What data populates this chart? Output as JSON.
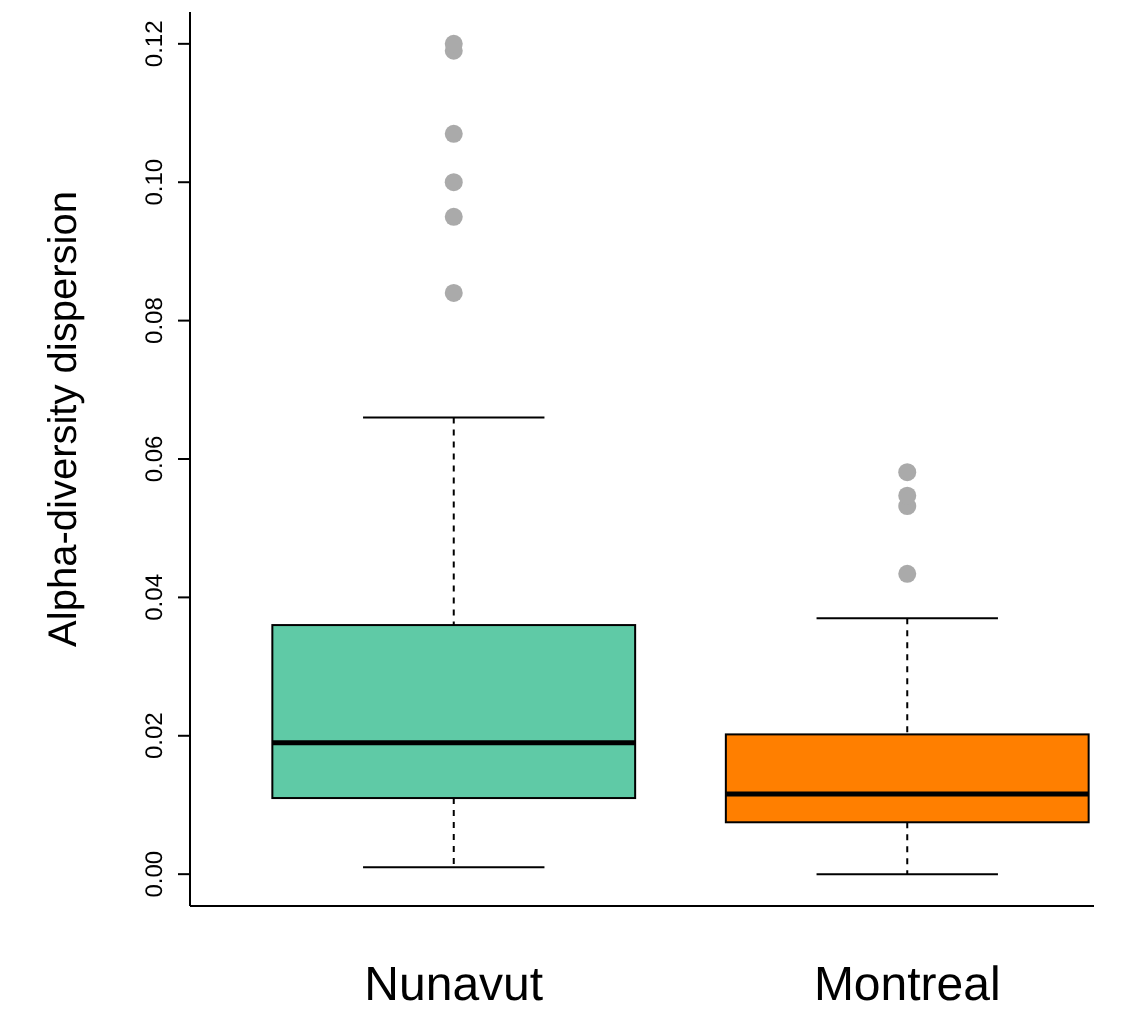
{
  "chart_data": {
    "type": "box",
    "ylabel": "Alpha-diversity dispersion",
    "categories": [
      "Nunavut",
      "Montreal"
    ],
    "colors": [
      "#5fcaa6",
      "#ff7f00"
    ],
    "boxes": [
      {
        "low": 0.001,
        "q1": 0.011,
        "median": 0.019,
        "q3": 0.036,
        "high": 0.066,
        "outliers": [
          0.084,
          0.095,
          0.1,
          0.107,
          0.119,
          0.12
        ]
      },
      {
        "low": 0.0,
        "q1": 0.0075,
        "median": 0.0116,
        "q3": 0.0202,
        "high": 0.037,
        "outliers": [
          0.0434,
          0.0532,
          0.0547,
          0.0581
        ]
      }
    ],
    "ylim": [
      -0.0046,
      0.1246
    ],
    "yticks": [
      {
        "value": 0,
        "label": "0.00"
      },
      {
        "value": 0.02,
        "label": "0.02"
      },
      {
        "value": 0.04,
        "label": "0.04"
      },
      {
        "value": 0.06,
        "label": "0.06"
      },
      {
        "value": 0.08,
        "label": "0.08"
      },
      {
        "value": 0.1,
        "label": "0.10"
      },
      {
        "value": 0.12,
        "label": "0.12"
      }
    ],
    "grid": false,
    "marker": "circle"
  }
}
